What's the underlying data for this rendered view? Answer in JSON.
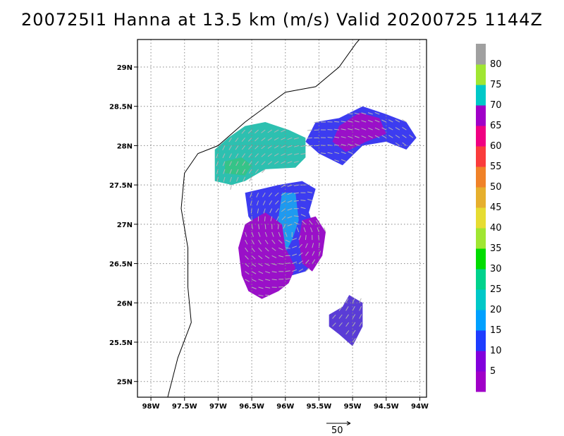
{
  "title": "200725I1 Hanna at 13.5 km (m/s) Valid 20200725 1144Z",
  "map": {
    "lon_range": [
      -98.2,
      -93.9
    ],
    "lat_range": [
      24.8,
      29.35
    ],
    "lat_ticks": [
      {
        "value": 25.0,
        "label": "25N"
      },
      {
        "value": 25.5,
        "label": "25.5N"
      },
      {
        "value": 26.0,
        "label": "26N"
      },
      {
        "value": 26.5,
        "label": "26.5N"
      },
      {
        "value": 27.0,
        "label": "27N"
      },
      {
        "value": 27.5,
        "label": "27.5N"
      },
      {
        "value": 28.0,
        "label": "28N"
      },
      {
        "value": 28.5,
        "label": "28.5N"
      },
      {
        "value": 29.0,
        "label": "29N"
      }
    ],
    "lon_ticks": [
      {
        "value": -98.0,
        "label": "98W"
      },
      {
        "value": -97.5,
        "label": "97.5W"
      },
      {
        "value": -97.0,
        "label": "97W"
      },
      {
        "value": -96.5,
        "label": "96.5W"
      },
      {
        "value": -96.0,
        "label": "96W"
      },
      {
        "value": -95.5,
        "label": "95.5W"
      },
      {
        "value": -95.0,
        "label": "95W"
      },
      {
        "value": -94.5,
        "label": "94.5W"
      },
      {
        "value": -94.0,
        "label": "94W"
      }
    ],
    "grid": true,
    "coastline": [
      [
        -97.75,
        24.8
      ],
      [
        -97.6,
        25.3
      ],
      [
        -97.4,
        25.75
      ],
      [
        -97.45,
        26.2
      ],
      [
        -97.45,
        26.7
      ],
      [
        -97.55,
        27.2
      ],
      [
        -97.5,
        27.65
      ],
      [
        -97.3,
        27.9
      ],
      [
        -97.0,
        28.0
      ],
      [
        -96.6,
        28.3
      ],
      [
        -96.0,
        28.68
      ],
      [
        -95.55,
        28.75
      ],
      [
        -95.2,
        29.0
      ],
      [
        -94.95,
        29.3
      ],
      [
        -94.9,
        29.35
      ]
    ],
    "wind_regions": [
      {
        "name": "western-band",
        "speed_class": "20-25",
        "color": "#2dc0b0",
        "outline": [
          [
            -97.05,
            27.55
          ],
          [
            -97.05,
            27.95
          ],
          [
            -96.85,
            28.1
          ],
          [
            -96.6,
            28.25
          ],
          [
            -96.3,
            28.3
          ],
          [
            -95.95,
            28.2
          ],
          [
            -95.7,
            28.1
          ],
          [
            -95.7,
            27.85
          ],
          [
            -95.85,
            27.72
          ],
          [
            -96.3,
            27.7
          ],
          [
            -96.6,
            27.55
          ],
          [
            -96.8,
            27.5
          ]
        ]
      },
      {
        "name": "western-core",
        "speed_class": "25-30",
        "color": "#35c488",
        "outline": [
          [
            -96.9,
            27.65
          ],
          [
            -96.9,
            27.8
          ],
          [
            -96.65,
            27.85
          ],
          [
            -96.5,
            27.75
          ],
          [
            -96.6,
            27.62
          ]
        ]
      },
      {
        "name": "central-band",
        "speed_class": "10-15",
        "color": "#3c3cf0",
        "outline": [
          [
            -96.6,
            27.4
          ],
          [
            -96.1,
            27.5
          ],
          [
            -95.75,
            27.55
          ],
          [
            -95.55,
            27.45
          ],
          [
            -95.65,
            27.15
          ],
          [
            -95.55,
            26.9
          ],
          [
            -95.45,
            26.65
          ],
          [
            -95.7,
            26.4
          ],
          [
            -95.9,
            26.35
          ],
          [
            -96.1,
            26.55
          ],
          [
            -96.3,
            26.8
          ],
          [
            -96.55,
            27.1
          ]
        ]
      },
      {
        "name": "central-core",
        "speed_class": "15-20",
        "color": "#1e9af0",
        "outline": [
          [
            -96.05,
            27.4
          ],
          [
            -95.85,
            27.4
          ],
          [
            -95.8,
            27.05
          ],
          [
            -95.9,
            26.8
          ],
          [
            -96.05,
            26.55
          ],
          [
            -96.15,
            26.75
          ],
          [
            -96.1,
            27.1
          ]
        ]
      },
      {
        "name": "southwest-region",
        "speed_class": "5-10",
        "color": "#9a10c8",
        "outline": [
          [
            -96.6,
            27.0
          ],
          [
            -96.3,
            27.15
          ],
          [
            -96.05,
            27.0
          ],
          [
            -96.0,
            26.7
          ],
          [
            -95.85,
            26.45
          ],
          [
            -95.95,
            26.25
          ],
          [
            -96.1,
            26.15
          ],
          [
            -96.35,
            26.05
          ],
          [
            -96.55,
            26.15
          ],
          [
            -96.65,
            26.35
          ],
          [
            -96.7,
            26.7
          ]
        ]
      },
      {
        "name": "southeast-region",
        "speed_class": "5-10",
        "color": "#9a10c8",
        "outline": [
          [
            -95.75,
            27.05
          ],
          [
            -95.55,
            27.1
          ],
          [
            -95.4,
            26.9
          ],
          [
            -95.45,
            26.6
          ],
          [
            -95.6,
            26.4
          ],
          [
            -95.75,
            26.5
          ],
          [
            -95.8,
            26.8
          ]
        ]
      },
      {
        "name": "northeast-band",
        "speed_class": "10-15",
        "color": "#3c3cf0",
        "outline": [
          [
            -95.55,
            28.3
          ],
          [
            -95.2,
            28.35
          ],
          [
            -94.85,
            28.5
          ],
          [
            -94.5,
            28.4
          ],
          [
            -94.2,
            28.3
          ],
          [
            -94.05,
            28.1
          ],
          [
            -94.2,
            27.95
          ],
          [
            -94.5,
            28.05
          ],
          [
            -94.85,
            28.0
          ],
          [
            -95.15,
            27.75
          ],
          [
            -95.5,
            27.9
          ],
          [
            -95.7,
            28.05
          ]
        ]
      },
      {
        "name": "northeast-core",
        "speed_class": "5-10",
        "color": "#9a10c8",
        "outline": [
          [
            -95.2,
            28.25
          ],
          [
            -94.9,
            28.42
          ],
          [
            -94.6,
            28.35
          ],
          [
            -94.5,
            28.15
          ],
          [
            -94.8,
            28.05
          ],
          [
            -95.1,
            27.92
          ],
          [
            -95.3,
            28.05
          ]
        ]
      },
      {
        "name": "south-cluster",
        "speed_class": "10-15",
        "color": "#5a3cd6",
        "outline": [
          [
            -95.35,
            25.85
          ],
          [
            -95.15,
            25.95
          ],
          [
            -95.05,
            26.1
          ],
          [
            -94.85,
            26.0
          ],
          [
            -94.85,
            25.7
          ],
          [
            -95.0,
            25.45
          ],
          [
            -95.2,
            25.6
          ],
          [
            -95.35,
            25.7
          ]
        ]
      }
    ],
    "vector_scale_label": "50"
  },
  "colorbar": {
    "levels": [
      {
        "label": "",
        "color": "#a000c8"
      },
      {
        "label": "5",
        "color": "#8200dc"
      },
      {
        "label": "10",
        "color": "#1e3cff"
      },
      {
        "label": "15",
        "color": "#00a0ff"
      },
      {
        "label": "20",
        "color": "#00c8c8"
      },
      {
        "label": "25",
        "color": "#00d28c"
      },
      {
        "label": "30",
        "color": "#00dc00"
      },
      {
        "label": "35",
        "color": "#a0e632"
      },
      {
        "label": "40",
        "color": "#e6dc32"
      },
      {
        "label": "45",
        "color": "#e6af2d"
      },
      {
        "label": "50",
        "color": "#f08228"
      },
      {
        "label": "55",
        "color": "#fa3c3c"
      },
      {
        "label": "60",
        "color": "#f00082"
      },
      {
        "label": "65",
        "color": "#a000c8"
      },
      {
        "label": "70",
        "color": "#00c8c8"
      },
      {
        "label": "75",
        "color": "#a0e632"
      },
      {
        "label": "80",
        "color": "#a0a0a0"
      }
    ]
  }
}
